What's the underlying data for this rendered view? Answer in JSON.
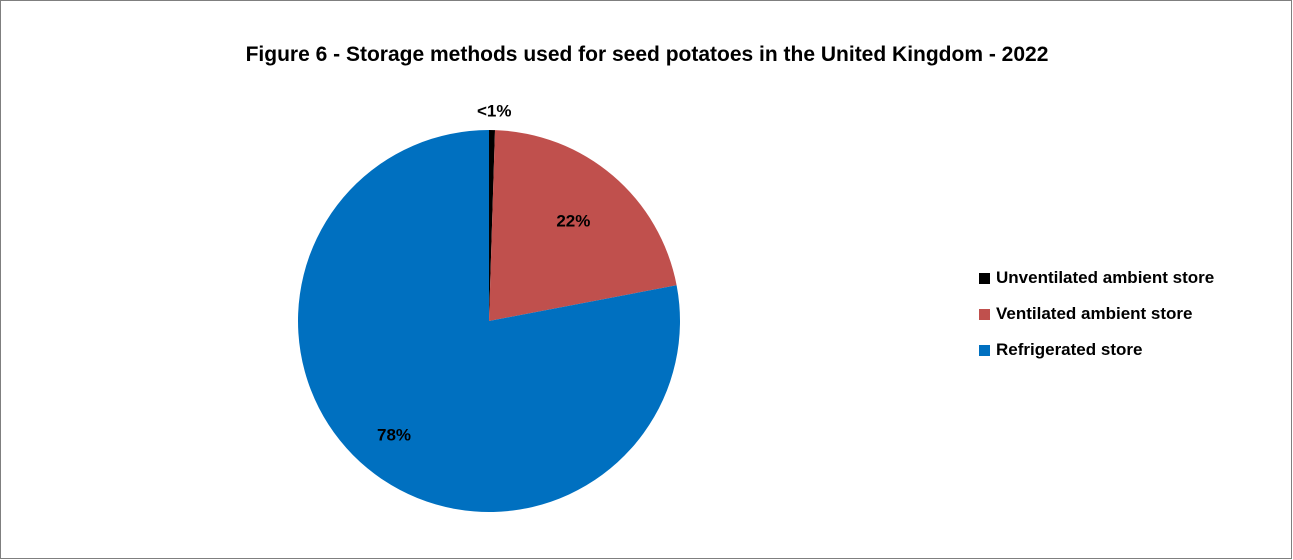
{
  "chart_data": {
    "type": "pie",
    "title": "Figure 6 - Storage methods used for seed potatoes in the United Kingdom - 2022",
    "series": [
      {
        "name": "Unventilated ambient store",
        "value": 0.5,
        "label": "<1%",
        "color": "#000000"
      },
      {
        "name": "Ventilated ambient store",
        "value": 21.5,
        "label": "22%",
        "color": "#c0504d"
      },
      {
        "name": "Refrigerated store",
        "value": 78,
        "label": "78%",
        "color": "#0070c0"
      }
    ],
    "legend_position": "right"
  }
}
